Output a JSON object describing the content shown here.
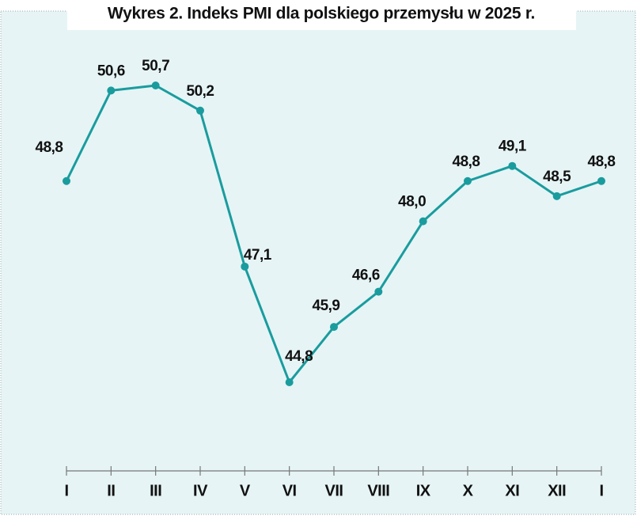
{
  "chart_data": {
    "type": "line",
    "title": "Wykres 2. Indeks PMI dla polskiego przemysłu w 2025 r.",
    "categories": [
      "I",
      "II",
      "III",
      "IV",
      "V",
      "VI",
      "VII",
      "VIII",
      "IX",
      "X",
      "XI",
      "XII",
      "I"
    ],
    "series": [
      {
        "name": "PMI",
        "color": "#1a9c9e",
        "values": [
          48.8,
          50.6,
          50.7,
          50.2,
          47.1,
          44.8,
          45.9,
          46.6,
          48.0,
          48.8,
          49.1,
          48.5,
          48.8
        ],
        "value_labels": [
          "48,8",
          "50,6",
          "50,7",
          "50,2",
          "47,1",
          "44,8",
          "45,9",
          "46,6",
          "48,0",
          "48,8",
          "49,1",
          "48,5",
          "48,8"
        ]
      }
    ]
  }
}
